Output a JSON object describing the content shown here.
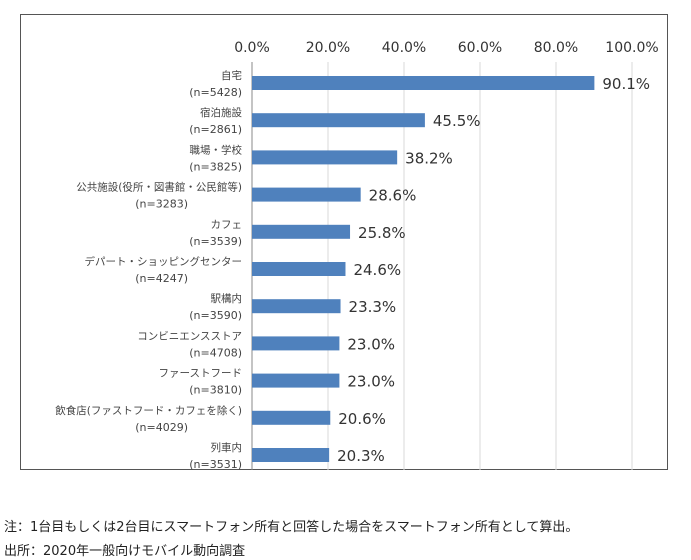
{
  "chart_data": {
    "type": "bar",
    "orientation": "horizontal",
    "categories": [
      "自宅",
      "宿泊施設",
      "職場・学校",
      "公共施設(役所・図書館・公民館等)",
      "カフェ",
      "デパート・ショッピングセンター",
      "駅構内",
      "コンビニエンスストア",
      "ファーストフード",
      "飲食店(ファストフード・カフェを除く)",
      "列車内"
    ],
    "sample_sizes": [
      "(n=5428)",
      "(n=2861)",
      "(n=3825)",
      "(n=3283)",
      "(n=3539)",
      "(n=4247)",
      "(n=3590)",
      "(n=4708)",
      "(n=3810)",
      "(n=4029)",
      "(n=3531)"
    ],
    "values": [
      90.1,
      45.5,
      38.2,
      28.6,
      25.8,
      24.6,
      23.3,
      23.0,
      23.0,
      20.6,
      20.3
    ],
    "data_labels": [
      "90.1%",
      "45.5%",
      "38.2%",
      "28.6%",
      "25.8%",
      "24.6%",
      "23.3%",
      "23.0%",
      "23.0%",
      "20.6%",
      "20.3%"
    ],
    "xlim": [
      0,
      100
    ],
    "x_ticks": [
      "0.0%",
      "20.0%",
      "40.0%",
      "60.0%",
      "80.0%",
      "100.0%"
    ],
    "x_axis_position": "top",
    "grid": true,
    "bar_color": "#4f81bd"
  },
  "notes": {
    "note": "注：1台目もしくは2台目にスマートフォン所有と回答した場合をスマートフォン所有として算出。",
    "source": "出所：2020年一般向けモバイル動向調査"
  }
}
